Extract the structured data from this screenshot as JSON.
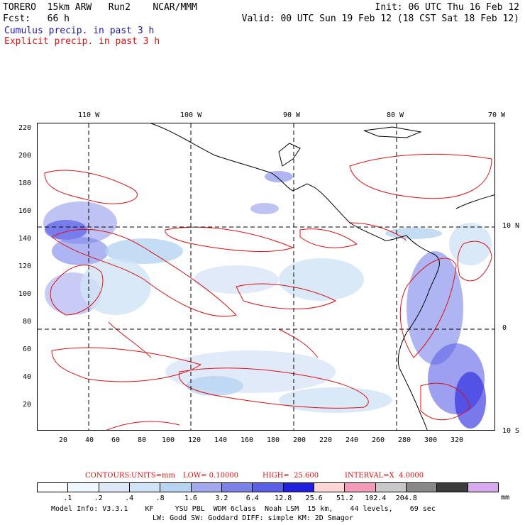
{
  "header": {
    "line1_left": "TORERO  15km ARW   Run2    NCAR/MMM",
    "line1_right": "Init: 06 UTC Thu 16 Feb 12",
    "line2_left": "Fcst:   66 h",
    "line2_right": "Valid: 00 UTC Sun 19 Feb 12 (18 CST Sat 18 Feb 12)"
  },
  "legend": {
    "cumulus": "Cumulus precip. in past 3 h",
    "explicit": "Explicit precip. in past 3 h"
  },
  "map": {
    "top_lon_labels": [
      "110 W",
      "100 W",
      "90 W",
      "80 W",
      "70 W"
    ],
    "right_lat_labels": [
      "10 N",
      "0",
      "10 S"
    ],
    "left_y_ticks": [
      "220",
      "200",
      "180",
      "160",
      "140",
      "120",
      "100",
      "80",
      "60",
      "40",
      "20"
    ],
    "bottom_x_ticks": [
      "20",
      "40",
      "60",
      "80",
      "100",
      "120",
      "140",
      "160",
      "180",
      "200",
      "220",
      "240",
      "260",
      "280",
      "300",
      "320"
    ],
    "colors": {
      "coast": "#000000",
      "contour": "#e01010",
      "grid": "#000000"
    }
  },
  "contour_info": {
    "label": "CONTOURS:",
    "units": "UNITS=mm",
    "low": "LOW= 0.10000",
    "high": "HIGH=  25.600",
    "interval": "INTERVAL=X  4.0000"
  },
  "colorbar": {
    "colors": [
      "#ffffff",
      "#f0f8ff",
      "#dde8f8",
      "#cfe4f6",
      "#b7d3f2",
      "#a3a9ee",
      "#7a82ea",
      "#5b5fe8",
      "#1f1fe0",
      "#ffd6d6",
      "#f39ab8",
      "#c8c8c8",
      "#888888",
      "#3c3c3c",
      "#d8a8f0"
    ],
    "labels": [
      ".1",
      ".2",
      ".4",
      ".8",
      "1.6",
      "3.2",
      "6.4",
      "12.8",
      "25.6",
      "51.2",
      "102.4",
      "204.8"
    ],
    "units": "mm"
  },
  "model_info": {
    "line1": "Model Info: V3.3.1    KF     YSU PBL  WDM 6class  Noah LSM  15 km,    44 levels,    69 sec",
    "line2": "LW: Godd SW: Goddard DIFF: simple KM: 2D Smagor"
  }
}
